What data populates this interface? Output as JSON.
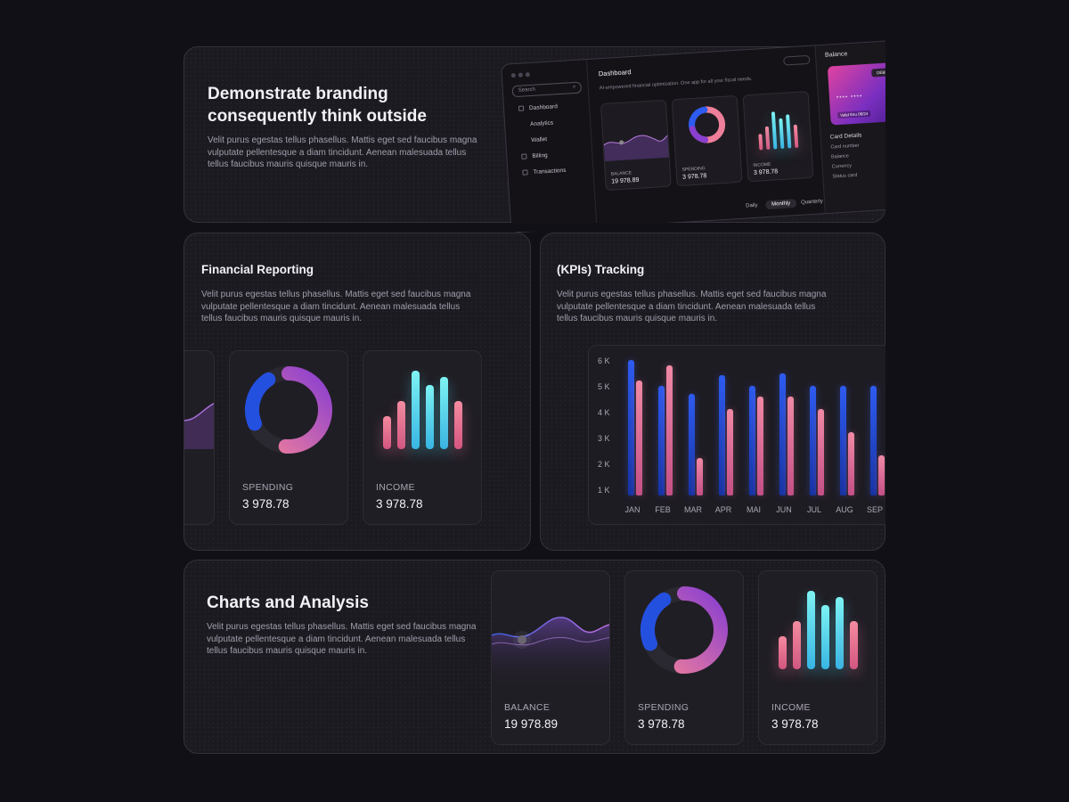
{
  "hero": {
    "title_line1": "Demonstrate branding",
    "title_line2": "consequently think outside",
    "description": "Velit purus egestas tellus phasellus. Mattis eget sed faucibus magna vulputate pellentesque a diam tincidunt. Aenean malesuada tellus tellus faucibus mauris quisque mauris in."
  },
  "mini_dashboard": {
    "search_placeholder": "Search",
    "nav": [
      "Dashboard",
      "Analytics",
      "Wallet",
      "Billing",
      "Transactions"
    ],
    "title": "Dashboard",
    "subtitle": "AI-empowered financial optimization. One app for all your fiscal needs.",
    "widgets": [
      {
        "label": "BALANCE",
        "value": "19 978.89"
      },
      {
        "label": "SPENDING",
        "value": "3 978.78"
      },
      {
        "label": "INCOME",
        "value": "3 978.78"
      }
    ],
    "tabs": [
      "Daily",
      "Monthly",
      "Quarterly"
    ],
    "active_tab": "Monthly",
    "balance_panel": {
      "title": "Balance",
      "card_tag": "DEBIT CARD",
      "card_number_masked": "****  ****",
      "valid_thru": "Valid thru 06/24",
      "details_title": "Card Details",
      "details": [
        "Card number",
        "Balance",
        "Currency",
        "Status card"
      ]
    }
  },
  "financial_reporting": {
    "title": "Financial Reporting",
    "description": "Velit purus egestas tellus phasellus. Mattis eget sed faucibus magna vulputate pellentesque a diam tincidunt. Aenean malesuada tellus tellus faucibus mauris quisque mauris in.",
    "spending": {
      "label": "SPENDING",
      "value": "3 978.78"
    },
    "income": {
      "label": "INCOME",
      "value": "3 978.78"
    }
  },
  "kpi": {
    "title": "(KPIs) Tracking",
    "description": "Velit purus egestas tellus phasellus. Mattis eget sed faucibus magna vulputate pellentesque a diam tincidunt. Aenean malesuada tellus tellus faucibus mauris quisque mauris in.",
    "y_ticks": [
      "6 K",
      "5 K",
      "4 K",
      "3 K",
      "2 K",
      "1 K"
    ]
  },
  "charts_analysis": {
    "title": "Charts and Analysis",
    "description": "Velit purus egestas tellus phasellus. Mattis eget sed faucibus magna vulputate pellentesque a diam tincidunt. Aenean malesuada tellus tellus faucibus mauris quisque mauris in.",
    "balance": {
      "label": "BALANCE",
      "value": "19 978.89"
    },
    "spending": {
      "label": "SPENDING",
      "value": "3 978.78"
    },
    "income": {
      "label": "INCOME",
      "value": "3 978.78"
    }
  },
  "colors": {
    "background": "#121017",
    "card": "#1c1a21",
    "blue": "#2e5bf0",
    "pink": "#f08aa5",
    "cyan": "#7ef3f3",
    "purple": "#8a3fd0"
  },
  "chart_data": {
    "type": "bar",
    "categories": [
      "JAN",
      "FEB",
      "MAR",
      "APR",
      "MAI",
      "JUN",
      "JUL",
      "AUG",
      "SEP"
    ],
    "series": [
      {
        "values": [
          6.0,
          5.0,
          4.7,
          5.4,
          5.0,
          5.5,
          5.0,
          5.0,
          5.0
        ]
      },
      {
        "values": [
          5.2,
          5.8,
          2.2,
          4.1,
          4.6,
          4.6,
          4.1,
          3.2,
          2.3
        ]
      }
    ],
    "ylim": [
      0,
      6
    ],
    "y_unit": "K",
    "grid": false
  },
  "donut": {
    "blue_fraction": 0.22,
    "pink_fraction": 0.5
  },
  "income_bars": {
    "values": [
      0.42,
      0.62,
      1.0,
      0.82,
      0.92,
      0.62
    ],
    "colors": [
      "pink",
      "pink",
      "cyan",
      "cyan",
      "cyan",
      "pink"
    ]
  }
}
